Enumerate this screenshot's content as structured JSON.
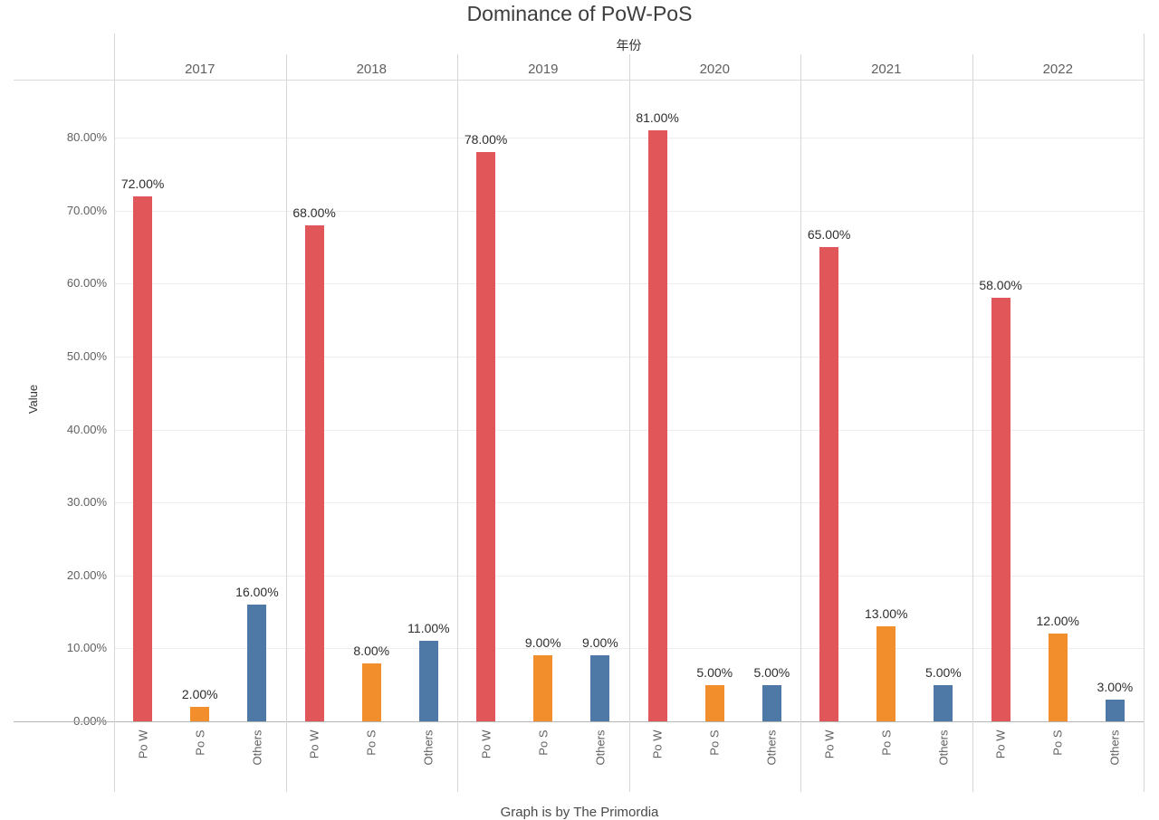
{
  "chart_data": {
    "type": "bar",
    "title": "Dominance of PoW-PoS",
    "facet_axis_title": "年份",
    "ylabel": "Value",
    "footer_caption": "Graph is by The Primordia",
    "legend": "none",
    "categories": [
      "Po W",
      "Po S",
      "Others"
    ],
    "series_colors": [
      "#E15759",
      "#F28E2B",
      "#4E79A7"
    ],
    "groups": [
      {
        "year": "2017",
        "values": [
          72,
          2,
          16
        ]
      },
      {
        "year": "2018",
        "values": [
          68,
          8,
          11
        ]
      },
      {
        "year": "2019",
        "values": [
          78,
          9,
          9
        ]
      },
      {
        "year": "2020",
        "values": [
          81,
          5,
          5
        ]
      },
      {
        "year": "2021",
        "values": [
          65,
          13,
          5
        ]
      },
      {
        "year": "2022",
        "values": [
          58,
          12,
          3
        ]
      }
    ],
    "value_label_format": "0.00%",
    "value_labels_shown": true,
    "y_axis": {
      "ticks": [
        0,
        10,
        20,
        30,
        40,
        50,
        60,
        70,
        80
      ],
      "tick_format": "percent-2dp",
      "ylim": [
        0,
        88
      ],
      "grid": true
    }
  }
}
